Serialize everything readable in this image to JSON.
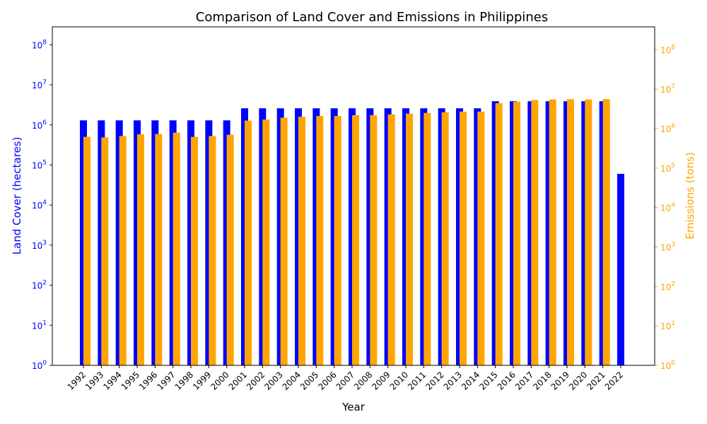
{
  "chart_data": {
    "type": "bar",
    "title": "Comparison of Land Cover and Emissions in Philippines",
    "xlabel": "Year",
    "ylabel_left": "Land Cover (hectares)",
    "ylabel_right": "Emissions (tons)",
    "y_scale": "log",
    "ylim_left": [
      1,
      280000000
    ],
    "ylim_right": [
      1,
      380000000
    ],
    "y_ticks": [
      {
        "exp": "0",
        "value": 1
      },
      {
        "exp": "1",
        "value": 10
      },
      {
        "exp": "2",
        "value": 100
      },
      {
        "exp": "3",
        "value": 1000
      },
      {
        "exp": "4",
        "value": 10000
      },
      {
        "exp": "5",
        "value": 100000
      },
      {
        "exp": "6",
        "value": 1000000
      },
      {
        "exp": "7",
        "value": 10000000
      },
      {
        "exp": "8",
        "value": 100000000
      }
    ],
    "categories": [
      "1992",
      "1993",
      "1994",
      "1995",
      "1996",
      "1997",
      "1998",
      "1999",
      "2000",
      "2001",
      "2002",
      "2003",
      "2004",
      "2005",
      "2006",
      "2007",
      "2008",
      "2009",
      "2010",
      "2011",
      "2012",
      "2013",
      "2014",
      "2015",
      "2016",
      "2017",
      "2018",
      "2019",
      "2020",
      "2021",
      "2022"
    ],
    "series": [
      {
        "name": "Land Cover",
        "axis": "left",
        "color": "#0000ff",
        "values": [
          1300000,
          1300000,
          1300000,
          1300000,
          1300000,
          1300000,
          1300000,
          1300000,
          1300000,
          2600000,
          2600000,
          2600000,
          2600000,
          2600000,
          2600000,
          2600000,
          2600000,
          2600000,
          2600000,
          2600000,
          2600000,
          2600000,
          2600000,
          3900000,
          3900000,
          3900000,
          3900000,
          3900000,
          3900000,
          3900000,
          60000
        ]
      },
      {
        "name": "Emissions",
        "axis": "right",
        "color": "#ffa500",
        "values": [
          620000,
          600000,
          650000,
          720000,
          730000,
          790000,
          620000,
          650000,
          700000,
          1600000,
          1700000,
          1900000,
          2000000,
          2100000,
          2100000,
          2200000,
          2200000,
          2300000,
          2400000,
          2500000,
          2600000,
          2700000,
          2700000,
          4400000,
          4800000,
          5300000,
          5500000,
          5600000,
          5500000,
          5600000,
          null
        ]
      }
    ],
    "colors": {
      "left_axis": "#0000ff",
      "right_axis": "#ffa500",
      "frame": "#000000"
    }
  }
}
